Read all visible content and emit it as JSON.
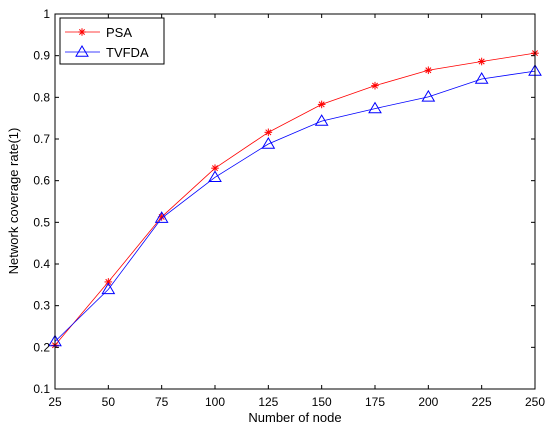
{
  "chart_data": {
    "type": "line",
    "xlabel": "Number of node",
    "ylabel": "Network coverage rate(1)",
    "x": [
      25,
      50,
      75,
      100,
      125,
      150,
      175,
      200,
      225,
      250
    ],
    "xticks": [
      "25",
      "50",
      "75",
      "100",
      "125",
      "150",
      "175",
      "200",
      "225",
      "250"
    ],
    "yticks": [
      "0.1",
      "0.2",
      "0.3",
      "0.4",
      "0.5",
      "0.6",
      "0.7",
      "0.8",
      "0.9",
      "1"
    ],
    "xlim": [
      25,
      250
    ],
    "ylim": [
      0.1,
      1.0
    ],
    "grid": false,
    "legend_position": "top-left",
    "series": [
      {
        "name": "PSA",
        "color": "#ff0000",
        "marker": "asterisk",
        "values": [
          0.205,
          0.357,
          0.513,
          0.63,
          0.716,
          0.783,
          0.828,
          0.865,
          0.886,
          0.906
        ]
      },
      {
        "name": "TVFDA",
        "color": "#0000ff",
        "marker": "triangle",
        "values": [
          0.214,
          0.339,
          0.51,
          0.608,
          0.688,
          0.743,
          0.773,
          0.801,
          0.844,
          0.863
        ]
      }
    ]
  }
}
